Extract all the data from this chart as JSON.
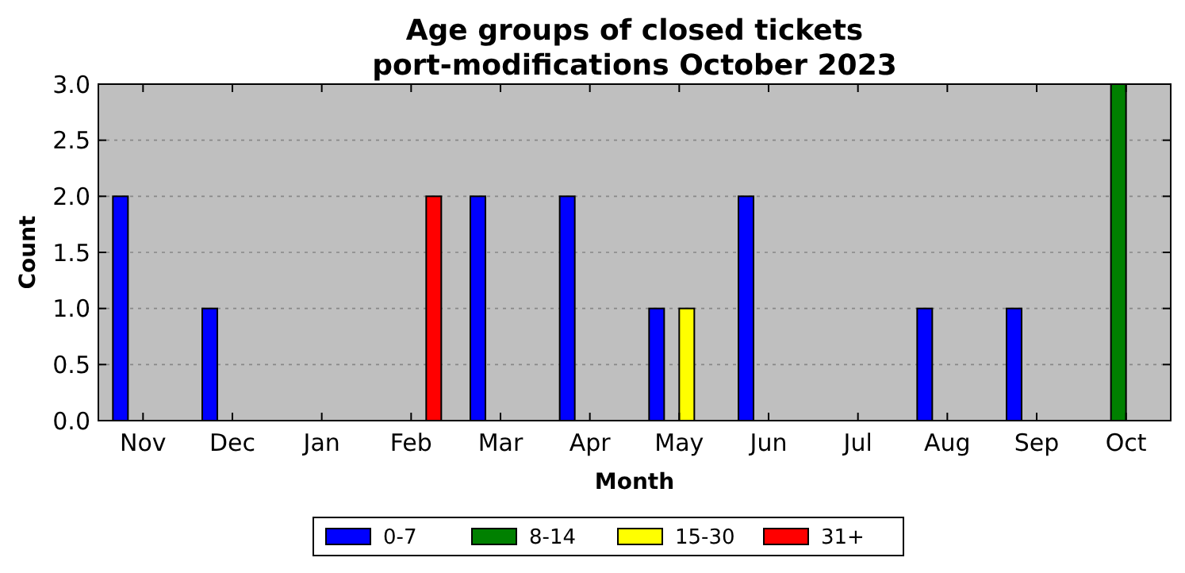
{
  "chart_data": {
    "type": "bar",
    "title": "Age groups of closed tickets\nport-modifications October 2023",
    "xlabel": "Month",
    "ylabel": "Count",
    "categories": [
      "Nov",
      "Dec",
      "Jan",
      "Feb",
      "Mar",
      "Apr",
      "May",
      "Jun",
      "Jul",
      "Aug",
      "Sep",
      "Oct"
    ],
    "series": [
      {
        "name": "0-7",
        "color": "#0000ff",
        "values": [
          2,
          1,
          0,
          0,
          2,
          2,
          1,
          2,
          0,
          1,
          1,
          0
        ]
      },
      {
        "name": "8-14",
        "color": "#008000",
        "values": [
          0,
          0,
          0,
          0,
          0,
          0,
          0,
          0,
          0,
          0,
          0,
          3
        ]
      },
      {
        "name": "15-30",
        "color": "#ffff00",
        "values": [
          0,
          0,
          0,
          0,
          0,
          0,
          1,
          0,
          0,
          0,
          0,
          0
        ]
      },
      {
        "name": "31+",
        "color": "#ff0000",
        "values": [
          0,
          0,
          0,
          2,
          0,
          0,
          0,
          0,
          0,
          0,
          0,
          0
        ]
      }
    ],
    "ylim": [
      0,
      3
    ],
    "yticks": [
      {
        "value": 0,
        "label": "0.0"
      },
      {
        "value": 0.5,
        "label": "0.5"
      },
      {
        "value": 1,
        "label": "1.0"
      },
      {
        "value": 1.5,
        "label": "1.5"
      },
      {
        "value": 2,
        "label": "2.0"
      },
      {
        "value": 2.5,
        "label": "2.5"
      },
      {
        "value": 3,
        "label": "3.0"
      }
    ],
    "grid": "y",
    "legend": "bottom"
  }
}
